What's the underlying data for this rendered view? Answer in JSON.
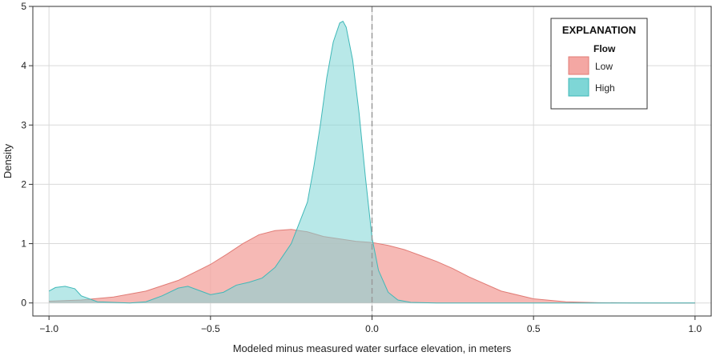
{
  "chart_data": {
    "type": "area",
    "title": "",
    "xlabel": "Modeled minus measured water surface elevation, in meters",
    "ylabel": "Density",
    "xlim": [
      -1.05,
      1.05
    ],
    "ylim": [
      -0.22,
      5
    ],
    "x_ticks": [
      -1.0,
      -0.5,
      0.0,
      0.5,
      1.0
    ],
    "x_tick_labels": [
      "−1.0",
      "−0.5",
      "0.0",
      "0.5",
      "1.0"
    ],
    "y_ticks": [
      0,
      1,
      2,
      3,
      4,
      5
    ],
    "y_tick_labels": [
      "0",
      "1",
      "2",
      "3",
      "4",
      "5"
    ],
    "grid": true,
    "reference_line": {
      "x": 0.0,
      "style": "dashed",
      "color": "#999999"
    },
    "legend": {
      "title": "EXPLANATION",
      "subtitle": "Flow",
      "placement": "top-right",
      "entries": [
        "Low",
        "High"
      ]
    },
    "series": [
      {
        "name": "Low",
        "fill": "#F4A7A3",
        "stroke": "#E07B75",
        "x": [
          -1.0,
          -0.9,
          -0.8,
          -0.7,
          -0.6,
          -0.5,
          -0.45,
          -0.4,
          -0.35,
          -0.3,
          -0.25,
          -0.2,
          -0.15,
          -0.1,
          -0.05,
          0.0,
          0.05,
          0.1,
          0.15,
          0.2,
          0.25,
          0.3,
          0.4,
          0.5,
          0.6,
          0.7,
          0.8,
          0.9,
          1.0
        ],
        "y": [
          0.03,
          0.05,
          0.1,
          0.2,
          0.38,
          0.65,
          0.82,
          1.0,
          1.15,
          1.22,
          1.24,
          1.2,
          1.12,
          1.08,
          1.04,
          1.02,
          0.97,
          0.9,
          0.8,
          0.7,
          0.58,
          0.44,
          0.2,
          0.07,
          0.02,
          0.005,
          0.001,
          0.0,
          0.0
        ]
      },
      {
        "name": "High",
        "fill": "#7ED6D6",
        "stroke": "#3FB8B8",
        "x": [
          -1.0,
          -0.98,
          -0.95,
          -0.92,
          -0.9,
          -0.85,
          -0.8,
          -0.75,
          -0.7,
          -0.65,
          -0.6,
          -0.57,
          -0.54,
          -0.5,
          -0.46,
          -0.42,
          -0.38,
          -0.34,
          -0.3,
          -0.25,
          -0.2,
          -0.18,
          -0.16,
          -0.14,
          -0.12,
          -0.1,
          -0.09,
          -0.08,
          -0.06,
          -0.04,
          -0.02,
          0.0,
          0.02,
          0.05,
          0.08,
          0.12,
          0.2,
          0.3,
          0.5,
          1.0
        ],
        "y": [
          0.2,
          0.26,
          0.28,
          0.24,
          0.12,
          0.02,
          0.01,
          0.0,
          0.02,
          0.12,
          0.25,
          0.28,
          0.22,
          0.14,
          0.18,
          0.3,
          0.35,
          0.42,
          0.6,
          1.0,
          1.7,
          2.3,
          3.0,
          3.8,
          4.4,
          4.72,
          4.75,
          4.65,
          4.1,
          3.2,
          2.1,
          1.1,
          0.55,
          0.18,
          0.05,
          0.01,
          0.0,
          0.0,
          0.0,
          0.0
        ]
      }
    ]
  }
}
